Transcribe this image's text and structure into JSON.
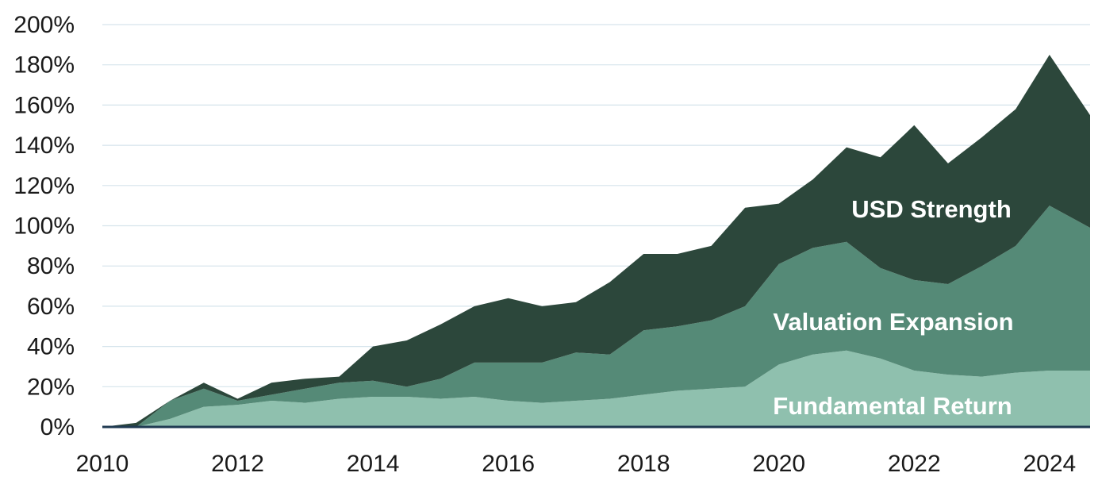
{
  "chart_data": {
    "type": "area",
    "stacked": true,
    "title": "",
    "xlabel": "",
    "ylabel": "",
    "x_ticks": [
      "2010",
      "2012",
      "2014",
      "2016",
      "2018",
      "2020",
      "2022",
      "2024"
    ],
    "y_ticks": [
      "0%",
      "20%",
      "40%",
      "60%",
      "80%",
      "100%",
      "120%",
      "140%",
      "160%",
      "180%",
      "200%"
    ],
    "xlim": [
      2010,
      2024.6
    ],
    "ylim": [
      0,
      200
    ],
    "grid": true,
    "legend": "none (series labelled inside the chart)",
    "x": [
      2010.0,
      2010.5,
      2011.0,
      2011.5,
      2012.0,
      2012.5,
      2013.0,
      2013.5,
      2014.0,
      2014.5,
      2015.0,
      2015.5,
      2016.0,
      2016.5,
      2017.0,
      2017.5,
      2018.0,
      2018.5,
      2019.0,
      2019.5,
      2020.0,
      2020.5,
      2021.0,
      2021.5,
      2022.0,
      2022.5,
      2023.0,
      2023.5,
      2024.0,
      2024.6
    ],
    "series": [
      {
        "name": "Fundamental Return",
        "color": "#8fc0ae",
        "values": [
          0,
          0,
          4,
          10,
          11,
          13,
          12,
          14,
          15,
          15,
          14,
          15,
          13,
          12,
          13,
          14,
          16,
          18,
          19,
          20,
          31,
          36,
          38,
          34,
          28,
          26,
          25,
          27,
          28,
          28
        ]
      },
      {
        "name": "Valuation Expansion",
        "color": "#558a77",
        "values": [
          0,
          0,
          9,
          9,
          2,
          3,
          7,
          8,
          8,
          5,
          10,
          17,
          19,
          20,
          24,
          22,
          32,
          32,
          34,
          40,
          50,
          53,
          54,
          45,
          45,
          45,
          55,
          63,
          82,
          71
        ]
      },
      {
        "name": "USD Strength",
        "color": "#2c473b",
        "values": [
          0,
          2,
          0,
          3,
          1,
          6,
          5,
          3,
          17,
          23,
          27,
          28,
          32,
          28,
          25,
          36,
          38,
          36,
          37,
          49,
          30,
          34,
          47,
          55,
          77,
          60,
          64,
          68,
          75,
          56
        ]
      }
    ],
    "annotations": [
      "USD Strength",
      "Valuation Expansion",
      "Fundamental Return"
    ]
  }
}
